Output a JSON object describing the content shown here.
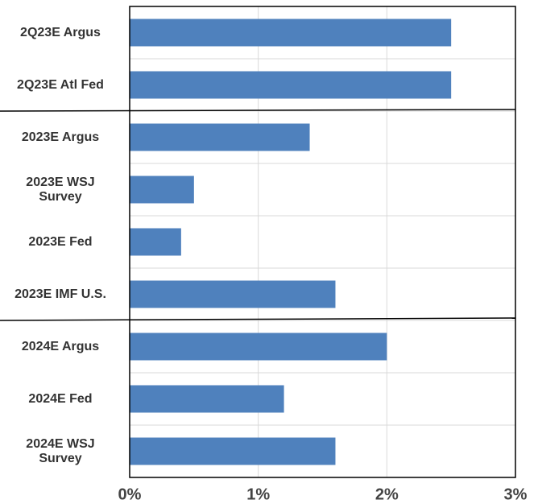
{
  "chart_data": {
    "type": "bar",
    "orientation": "horizontal",
    "categories": [
      "2Q23E Argus",
      "2Q23E Atl Fed",
      "2023E Argus",
      "2023E WSJ\nSurvey",
      "2023E  Fed",
      "2023E IMF U.S.",
      "2024E Argus",
      "2024E Fed",
      "2024E WSJ\nSurvey"
    ],
    "values": [
      2.5,
      2.5,
      1.4,
      0.5,
      0.4,
      1.6,
      2.0,
      1.2,
      1.6
    ],
    "color": "#4f81bd",
    "xlim": [
      0,
      3
    ],
    "xticks": [
      {
        "value": 0,
        "label": "0%"
      },
      {
        "value": 1,
        "label": "1%"
      },
      {
        "value": 2,
        "label": "2%"
      },
      {
        "value": 3,
        "label": "3%"
      }
    ],
    "grid": true
  }
}
